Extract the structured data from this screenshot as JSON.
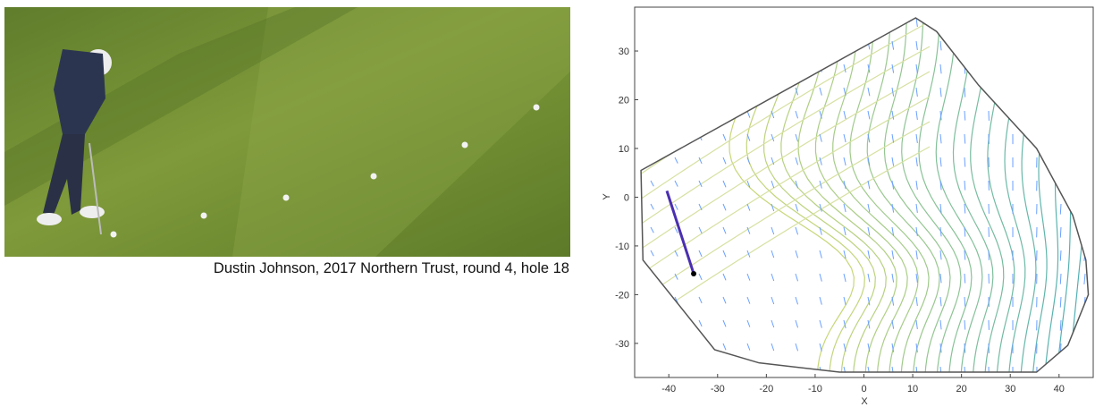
{
  "caption": "Dustin Johnson, 2017 Northern Trust, round 4, hole 18",
  "chart_data": {
    "type": "contour",
    "xlabel": "X",
    "ylabel": "Y",
    "xlim": [
      -47,
      47
    ],
    "ylim": [
      -37,
      39
    ],
    "xticks": [
      -40,
      -30,
      -20,
      -10,
      0,
      10,
      20,
      30,
      40
    ],
    "yticks": [
      -30,
      -20,
      -10,
      0,
      10,
      20,
      30
    ],
    "boundary": {
      "color": "#555555",
      "x": [
        -45.7,
        10.6,
        14.9,
        23.5,
        35.4,
        42.8,
        45.5,
        46,
        41.8,
        35.4,
        15.2,
        -5,
        -21.5,
        -30.6,
        -45.3
      ],
      "y": [
        5.5,
        36.8,
        34,
        23,
        10,
        -3.7,
        -12.9,
        -20,
        -30.4,
        -35.9,
        -35.9,
        -35.9,
        -34,
        -31.3,
        -12.9
      ]
    },
    "putt": {
      "color": "#4a2fb0",
      "x": [
        -40.4,
        -34.9
      ],
      "y": [
        1.3,
        -15.7
      ]
    }
  }
}
